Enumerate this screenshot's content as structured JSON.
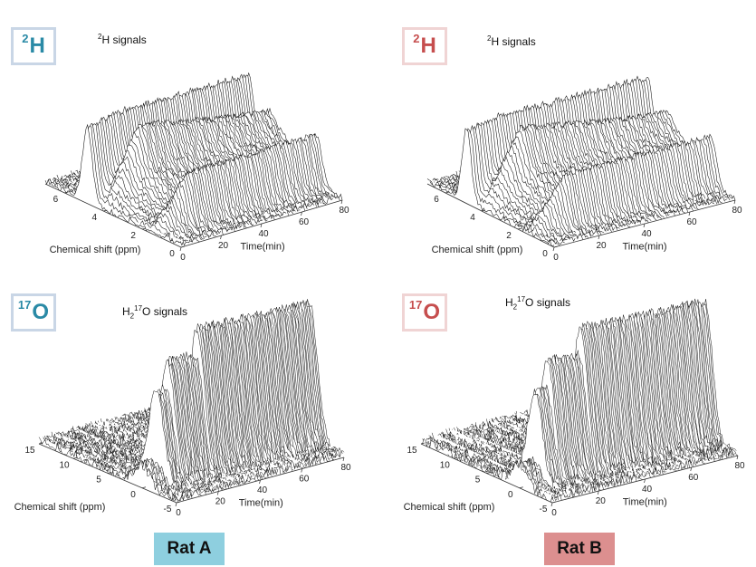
{
  "panels": [
    {
      "id": "a-2h",
      "badge": {
        "sup": "2",
        "main": "H"
      },
      "signal_label": {
        "sup": "2",
        "text": "H signals"
      },
      "xlabel": "Chemical shift (ppm)",
      "ylabel": "Time(min)",
      "x_ticks": [
        "0",
        "2",
        "4",
        "6"
      ],
      "y_ticks": [
        "0",
        "20",
        "40",
        "60",
        "80"
      ]
    },
    {
      "id": "b-2h",
      "badge": {
        "sup": "2",
        "main": "H"
      },
      "signal_label": {
        "sup": "2",
        "text": "H signals"
      },
      "xlabel": "Chemical shift (ppm)",
      "ylabel": "Time(min)",
      "x_ticks": [
        "0",
        "2",
        "4",
        "6"
      ],
      "y_ticks": [
        "0",
        "20",
        "40",
        "60",
        "80"
      ]
    },
    {
      "id": "a-17o",
      "badge": {
        "sup": "17",
        "main": "O"
      },
      "signal_label": {
        "pre": "H",
        "sub": "2",
        "sup": "17",
        "text": "O signals"
      },
      "xlabel": "Chemical shift (ppm)",
      "ylabel": "Time(min)",
      "x_ticks": [
        "-5",
        "0",
        "5",
        "10",
        "15"
      ],
      "y_ticks": [
        "0",
        "20",
        "40",
        "60",
        "80"
      ]
    },
    {
      "id": "b-17o",
      "badge": {
        "sup": "17",
        "main": "O"
      },
      "signal_label": {
        "pre": "H",
        "sub": "2",
        "sup": "17",
        "text": "O signals"
      },
      "xlabel": "Chemical shift (ppm)",
      "ylabel": "Time(min)",
      "x_ticks": [
        "-5",
        "0",
        "5",
        "10",
        "15"
      ],
      "y_ticks": [
        "0",
        "20",
        "40",
        "60",
        "80"
      ]
    }
  ],
  "rat_labels": {
    "a": "Rat A",
    "b": "Rat B"
  },
  "colors": {
    "rat_a": "#8ecfdf",
    "rat_b": "#dc8f8f",
    "rat_a_text": "#2a8aa6",
    "rat_b_text": "#c64e4e"
  },
  "chart_data": [
    {
      "type": "line",
      "subtype": "3d-waterfall",
      "panel": "a-2h",
      "xlabel": "Chemical shift (ppm)",
      "ylabel": "Time(min)",
      "xlim": [
        0,
        7
      ],
      "ylim": [
        0,
        80
      ],
      "peaks_ppm": [
        4.8,
        3.8,
        1.3
      ],
      "time_points_min": [
        0,
        4,
        8,
        12,
        16,
        20,
        24,
        28,
        32,
        36,
        40,
        44,
        48,
        52,
        56,
        60,
        64,
        68,
        72,
        76,
        80
      ]
    },
    {
      "type": "line",
      "subtype": "3d-waterfall",
      "panel": "b-2h",
      "xlabel": "Chemical shift (ppm)",
      "ylabel": "Time(min)",
      "xlim": [
        0,
        7
      ],
      "ylim": [
        0,
        80
      ],
      "peaks_ppm": [
        4.8,
        3.8,
        1.3
      ],
      "time_points_min": [
        0,
        4,
        8,
        12,
        16,
        20,
        24,
        28,
        32,
        36,
        40,
        44,
        48,
        52,
        56,
        60,
        64,
        68,
        72,
        76,
        80
      ]
    },
    {
      "type": "line",
      "subtype": "3d-waterfall",
      "panel": "a-17o",
      "xlabel": "Chemical shift (ppm)",
      "ylabel": "Time(min)",
      "xlim": [
        -5,
        15
      ],
      "ylim": [
        0,
        80
      ],
      "peaks_ppm": [
        0
      ],
      "time_points_min": [
        0,
        4,
        8,
        12,
        16,
        20,
        24,
        28,
        32,
        36,
        40,
        44,
        48,
        52,
        56,
        60,
        64,
        68,
        72,
        76,
        80
      ]
    },
    {
      "type": "line",
      "subtype": "3d-waterfall",
      "panel": "b-17o",
      "xlabel": "Chemical shift (ppm)",
      "ylabel": "Time(min)",
      "xlim": [
        -5,
        15
      ],
      "ylim": [
        0,
        80
      ],
      "peaks_ppm": [
        0
      ],
      "time_points_min": [
        0,
        4,
        8,
        12,
        16,
        20,
        24,
        28,
        32,
        36,
        40,
        44,
        48,
        52,
        56,
        60,
        64,
        68,
        72,
        76,
        80
      ]
    }
  ]
}
